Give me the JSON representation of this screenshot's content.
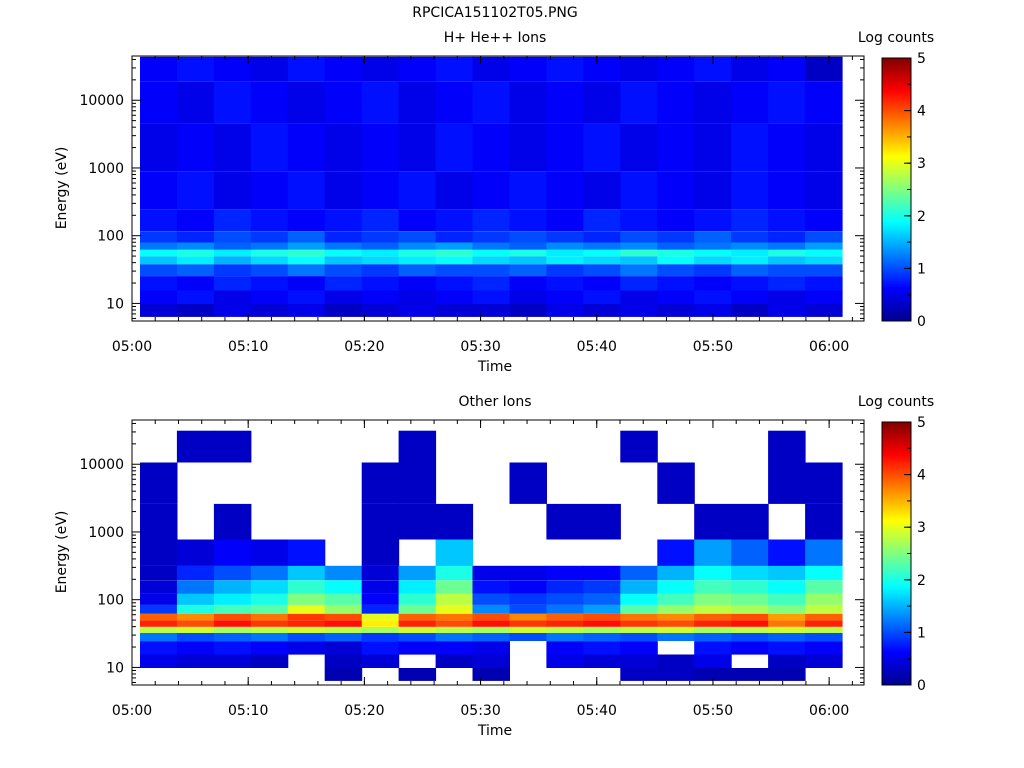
{
  "figure_title": "RPCICA151102T05.PNG",
  "chart_data": [
    {
      "type": "heatmap",
      "title": "H+ He++ Ions",
      "xlabel": "Time",
      "ylabel": "Energy (eV)",
      "colorbar_label": "Log counts",
      "x_ticks": [
        "05:00",
        "05:10",
        "05:20",
        "05:30",
        "05:40",
        "05:50",
        "06:00"
      ],
      "x_range": [
        "05:00",
        "06:03"
      ],
      "y_scale": "log",
      "y_ticks": [
        "10",
        "100",
        "1000",
        "10000"
      ],
      "y_range": [
        5.5,
        45000
      ],
      "colorbar_ticks": [
        "0",
        "1",
        "2",
        "3",
        "4",
        "5"
      ],
      "colorbar_range": [
        0,
        5
      ],
      "time_bins": [
        "05:01",
        "05:05",
        "05:08",
        "05:11",
        "05:14",
        "05:17",
        "05:21",
        "05:24",
        "05:27",
        "05:30",
        "05:33",
        "05:37",
        "05:40",
        "05:43",
        "05:46",
        "05:49",
        "05:53",
        "05:56",
        "05:59"
      ],
      "energy_bands_eV": [
        {
          "energy": 8,
          "values": [
            0.4,
            0.3,
            0.5,
            0.4,
            0.5,
            0.3,
            0.4,
            0.5,
            0.4,
            0.4,
            0.3,
            0.5,
            0.4,
            0.5,
            0.4,
            0.5,
            0.3,
            0.5,
            0.4
          ]
        },
        {
          "energy": 12,
          "values": [
            0.6,
            0.7,
            0.5,
            0.6,
            0.7,
            0.5,
            0.6,
            0.5,
            0.6,
            0.7,
            0.5,
            0.6,
            0.7,
            0.5,
            0.6,
            0.7,
            0.6,
            0.5,
            0.6
          ]
        },
        {
          "energy": 20,
          "values": [
            0.7,
            0.6,
            0.8,
            0.7,
            0.6,
            0.8,
            0.7,
            0.6,
            0.7,
            0.8,
            0.6,
            0.7,
            0.6,
            0.8,
            0.7,
            0.6,
            0.7,
            0.8,
            0.7
          ]
        },
        {
          "energy": 32,
          "values": [
            1.0,
            1.1,
            0.9,
            1.0,
            1.2,
            1.0,
            0.9,
            1.1,
            1.0,
            1.0,
            1.1,
            0.9,
            1.0,
            1.2,
            1.0,
            0.9,
            1.1,
            1.0,
            1.0
          ]
        },
        {
          "energy": 45,
          "values": [
            1.6,
            1.8,
            1.5,
            1.7,
            1.9,
            1.6,
            1.7,
            1.8,
            1.9,
            1.7,
            1.6,
            1.8,
            1.7,
            1.6,
            1.9,
            1.7,
            1.8,
            1.6,
            1.7
          ]
        },
        {
          "energy": 55,
          "values": [
            1.9,
            2.0,
            1.8,
            2.0,
            2.1,
            1.9,
            1.8,
            2.0,
            2.1,
            1.9,
            2.0,
            1.8,
            1.9,
            2.1,
            2.0,
            1.9,
            1.8,
            2.0,
            1.9
          ]
        },
        {
          "energy": 70,
          "values": [
            1.2,
            1.3,
            1.1,
            1.2,
            1.4,
            1.2,
            1.1,
            1.3,
            1.4,
            1.2,
            1.1,
            1.3,
            1.2,
            1.3,
            1.1,
            1.2,
            1.3,
            1.2,
            1.4
          ]
        },
        {
          "energy": 90,
          "values": [
            0.9,
            0.8,
            1.0,
            0.9,
            1.1,
            0.8,
            0.9,
            1.0,
            0.8,
            0.9,
            1.0,
            0.9,
            0.8,
            1.0,
            0.9,
            1.1,
            0.9,
            0.8,
            1.0
          ]
        },
        {
          "energy": 150,
          "values": [
            0.7,
            0.6,
            0.8,
            0.7,
            0.6,
            0.7,
            0.8,
            0.6,
            0.7,
            0.8,
            0.7,
            0.6,
            0.8,
            0.7,
            0.6,
            0.7,
            0.8,
            0.7,
            0.6
          ]
        },
        {
          "energy": 400,
          "values": [
            0.6,
            0.7,
            0.5,
            0.6,
            0.7,
            0.5,
            0.6,
            0.7,
            0.5,
            0.6,
            0.7,
            0.6,
            0.5,
            0.7,
            0.6,
            0.5,
            0.7,
            0.6,
            0.5
          ]
        },
        {
          "energy": 2000,
          "values": [
            0.5,
            0.6,
            0.5,
            0.7,
            0.6,
            0.5,
            0.6,
            0.5,
            0.7,
            0.6,
            0.5,
            0.6,
            0.7,
            0.5,
            0.6,
            0.5,
            0.7,
            0.6,
            0.5
          ]
        },
        {
          "energy": 10000,
          "values": [
            0.6,
            0.5,
            0.7,
            0.6,
            0.5,
            0.6,
            0.7,
            0.5,
            0.6,
            0.7,
            0.5,
            0.6,
            0.5,
            0.7,
            0.6,
            0.5,
            0.6,
            0.7,
            0.6
          ]
        },
        {
          "energy": 35000,
          "values": [
            0.6,
            0.7,
            0.6,
            0.5,
            0.7,
            0.6,
            0.5,
            0.6,
            0.7,
            0.5,
            0.6,
            0.7,
            0.6,
            0.5,
            0.6,
            0.7,
            0.5,
            0.6,
            0.3
          ]
        }
      ]
    },
    {
      "type": "heatmap",
      "title": "Other Ions",
      "xlabel": "Time",
      "ylabel": "Energy (eV)",
      "colorbar_label": "Log counts",
      "x_ticks": [
        "05:00",
        "05:10",
        "05:20",
        "05:30",
        "05:40",
        "05:50",
        "06:00"
      ],
      "x_range": [
        "05:00",
        "06:03"
      ],
      "y_scale": "log",
      "y_ticks": [
        "10",
        "100",
        "1000",
        "10000"
      ],
      "y_range": [
        5.5,
        45000
      ],
      "colorbar_ticks": [
        "0",
        "1",
        "2",
        "3",
        "4",
        "5"
      ],
      "colorbar_range": [
        0,
        5
      ],
      "time_bins": [
        "05:01",
        "05:05",
        "05:08",
        "05:11",
        "05:14",
        "05:17",
        "05:21",
        "05:24",
        "05:27",
        "05:30",
        "05:33",
        "05:37",
        "05:40",
        "05:43",
        "05:46",
        "05:49",
        "05:53",
        "05:56",
        "05:59"
      ],
      "energy_bands_eV": [
        {
          "energy": 8,
          "values": [
            0,
            0,
            0,
            0,
            0,
            0.2,
            0,
            0.2,
            0,
            0.2,
            0,
            0,
            0,
            0.3,
            0.3,
            0.2,
            0.2,
            0.2,
            0
          ]
        },
        {
          "energy": 12,
          "values": [
            0.5,
            0.4,
            0.4,
            0.3,
            0,
            0.3,
            0.4,
            0,
            0.3,
            0.4,
            0,
            0.5,
            0.4,
            0.4,
            0.3,
            0.5,
            0,
            0.3,
            0.4
          ]
        },
        {
          "energy": 20,
          "values": [
            0.7,
            0.6,
            0.7,
            0.6,
            0.5,
            0.4,
            0.7,
            0.6,
            0.6,
            0.5,
            0,
            0.6,
            0.7,
            0.6,
            0,
            0.7,
            0.6,
            0.7,
            0.6
          ]
        },
        {
          "energy": 30,
          "values": [
            1.2,
            1.0,
            1.1,
            1.2,
            1.0,
            1.1,
            0.9,
            1.0,
            1.2,
            1.1,
            1.0,
            1.2,
            1.1,
            1.0,
            1.2,
            1.1,
            1.0,
            1.1,
            1.0
          ]
        },
        {
          "energy": 35,
          "values": [
            2.8,
            2.9,
            2.7,
            2.8,
            2.9,
            2.8,
            2.7,
            2.9,
            2.8,
            2.7,
            2.9,
            2.8,
            2.7,
            2.8,
            2.9,
            2.7,
            2.8,
            2.9,
            2.8
          ]
        },
        {
          "energy": 45,
          "values": [
            4.2,
            4.0,
            4.3,
            4.1,
            4.2,
            4.3,
            3.2,
            4.2,
            4.0,
            4.3,
            4.1,
            4.2,
            4.3,
            4.1,
            4.0,
            4.2,
            4.3,
            3.8,
            4.2
          ]
        },
        {
          "energy": 55,
          "values": [
            3.9,
            3.7,
            4.0,
            3.8,
            4.1,
            4.0,
            3.0,
            3.9,
            3.8,
            4.0,
            3.7,
            3.9,
            4.0,
            3.8,
            3.7,
            3.9,
            4.0,
            3.6,
            3.9
          ]
        },
        {
          "energy": 70,
          "values": [
            0.9,
            2.0,
            2.2,
            2.3,
            3.0,
            2.6,
            0.8,
            2.4,
            3.0,
            1.3,
            1.0,
            1.2,
            1.4,
            2.3,
            2.6,
            2.8,
            2.7,
            2.5,
            2.8
          ]
        },
        {
          "energy": 100,
          "values": [
            0.5,
            1.6,
            1.8,
            2.0,
            2.5,
            2.3,
            0.6,
            2.1,
            2.8,
            1.0,
            0.9,
            1.0,
            1.1,
            1.9,
            2.2,
            2.5,
            2.4,
            2.2,
            2.6
          ]
        },
        {
          "energy": 150,
          "values": [
            0.4,
            1.2,
            1.5,
            1.7,
            2.1,
            1.9,
            0.5,
            1.8,
            2.4,
            0.7,
            0.6,
            0.8,
            0.9,
            1.5,
            1.9,
            2.2,
            2.1,
            1.9,
            2.3
          ]
        },
        {
          "energy": 250,
          "values": [
            0.3,
            0.8,
            1.0,
            1.2,
            1.6,
            1.3,
            0.4,
            1.4,
            2.0,
            0.5,
            0.5,
            0.6,
            0.6,
            1.1,
            1.5,
            1.9,
            1.7,
            1.6,
            1.9
          ]
        },
        {
          "energy": 400,
          "values": [
            0.3,
            0.4,
            0.6,
            0.5,
            0.7,
            0,
            0.3,
            0,
            1.6,
            0,
            0,
            0,
            0,
            0,
            0.7,
            1.4,
            1.1,
            0.7,
            1.2
          ]
        },
        {
          "energy": 1500,
          "values": [
            0.3,
            0,
            0.3,
            0,
            0,
            0,
            0.3,
            0.3,
            0.3,
            0,
            0,
            0.3,
            0.3,
            0,
            0,
            0.3,
            0.3,
            0,
            0.3
          ]
        },
        {
          "energy": 4500,
          "values": [
            0.3,
            0,
            0,
            0,
            0,
            0,
            0.3,
            0.3,
            0,
            0,
            0.3,
            0,
            0,
            0,
            0.3,
            0,
            0,
            0.3,
            0.3
          ]
        },
        {
          "energy": 25000,
          "values": [
            0,
            0.3,
            0.3,
            0,
            0,
            0,
            0,
            0.3,
            0,
            0,
            0,
            0,
            0,
            0.3,
            0,
            0,
            0,
            0.3,
            0
          ]
        }
      ]
    }
  ]
}
